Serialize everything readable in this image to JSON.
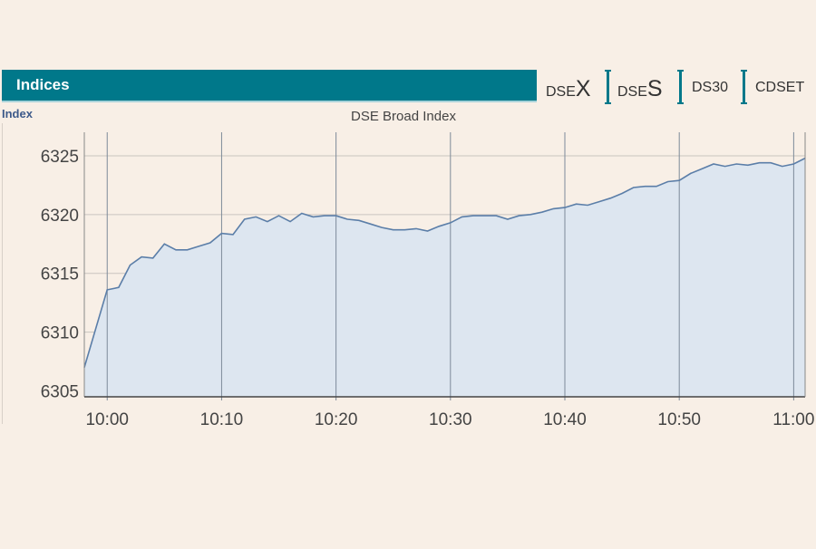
{
  "header": {
    "title": "Indices"
  },
  "tabs": [
    {
      "prefix": "DSE",
      "suffix": "X"
    },
    {
      "prefix": "DSE",
      "suffix": "S"
    },
    {
      "prefix": "DS30",
      "suffix": ""
    },
    {
      "prefix": "CDSET",
      "suffix": ""
    }
  ],
  "index_label": "Index",
  "colors": {
    "accent": "#00788a",
    "line": "#5b7ea8",
    "fill": "#dde6f0"
  },
  "chart_data": {
    "type": "area",
    "title": "DSE Broad Index",
    "ylabel": "Index",
    "xlabel": "",
    "xlim": [
      "09:58",
      "11:01"
    ],
    "ylim": [
      6304.5,
      6327
    ],
    "yticks": [
      6305,
      6310,
      6315,
      6320,
      6325
    ],
    "xticks": [
      "10:00",
      "10:10",
      "10:20",
      "10:30",
      "10:40",
      "10:50",
      "11:00"
    ],
    "grid": true,
    "series": [
      {
        "values": [
          [
            "09:58",
            6307.0
          ],
          [
            "10:00",
            6313.6
          ],
          [
            "10:01",
            6313.8
          ],
          [
            "10:02",
            6315.7
          ],
          [
            "10:03",
            6316.4
          ],
          [
            "10:04",
            6316.3
          ],
          [
            "10:05",
            6317.5
          ],
          [
            "10:06",
            6317.0
          ],
          [
            "10:07",
            6317.0
          ],
          [
            "10:08",
            6317.3
          ],
          [
            "10:09",
            6317.6
          ],
          [
            "10:10",
            6318.4
          ],
          [
            "10:11",
            6318.3
          ],
          [
            "10:12",
            6319.6
          ],
          [
            "10:13",
            6319.8
          ],
          [
            "10:14",
            6319.4
          ],
          [
            "10:15",
            6319.9
          ],
          [
            "10:16",
            6319.4
          ],
          [
            "10:17",
            6320.1
          ],
          [
            "10:18",
            6319.8
          ],
          [
            "10:19",
            6319.9
          ],
          [
            "10:20",
            6319.9
          ],
          [
            "10:21",
            6319.6
          ],
          [
            "10:22",
            6319.5
          ],
          [
            "10:23",
            6319.2
          ],
          [
            "10:24",
            6318.9
          ],
          [
            "10:25",
            6318.7
          ],
          [
            "10:26",
            6318.7
          ],
          [
            "10:27",
            6318.8
          ],
          [
            "10:28",
            6318.6
          ],
          [
            "10:29",
            6319.0
          ],
          [
            "10:30",
            6319.3
          ],
          [
            "10:31",
            6319.8
          ],
          [
            "10:32",
            6319.9
          ],
          [
            "10:33",
            6319.9
          ],
          [
            "10:34",
            6319.9
          ],
          [
            "10:35",
            6319.6
          ],
          [
            "10:36",
            6319.9
          ],
          [
            "10:37",
            6320.0
          ],
          [
            "10:38",
            6320.2
          ],
          [
            "10:39",
            6320.5
          ],
          [
            "10:40",
            6320.6
          ],
          [
            "10:41",
            6320.9
          ],
          [
            "10:42",
            6320.8
          ],
          [
            "10:43",
            6321.1
          ],
          [
            "10:44",
            6321.4
          ],
          [
            "10:45",
            6321.8
          ],
          [
            "10:46",
            6322.3
          ],
          [
            "10:47",
            6322.4
          ],
          [
            "10:48",
            6322.4
          ],
          [
            "10:49",
            6322.8
          ],
          [
            "10:50",
            6322.9
          ],
          [
            "10:51",
            6323.5
          ],
          [
            "10:52",
            6323.9
          ],
          [
            "10:53",
            6324.3
          ],
          [
            "10:54",
            6324.1
          ],
          [
            "10:55",
            6324.3
          ],
          [
            "10:56",
            6324.2
          ],
          [
            "10:57",
            6324.4
          ],
          [
            "10:58",
            6324.4
          ],
          [
            "10:59",
            6324.1
          ],
          [
            "11:00",
            6324.3
          ],
          [
            "11:01",
            6324.8
          ]
        ]
      }
    ]
  }
}
